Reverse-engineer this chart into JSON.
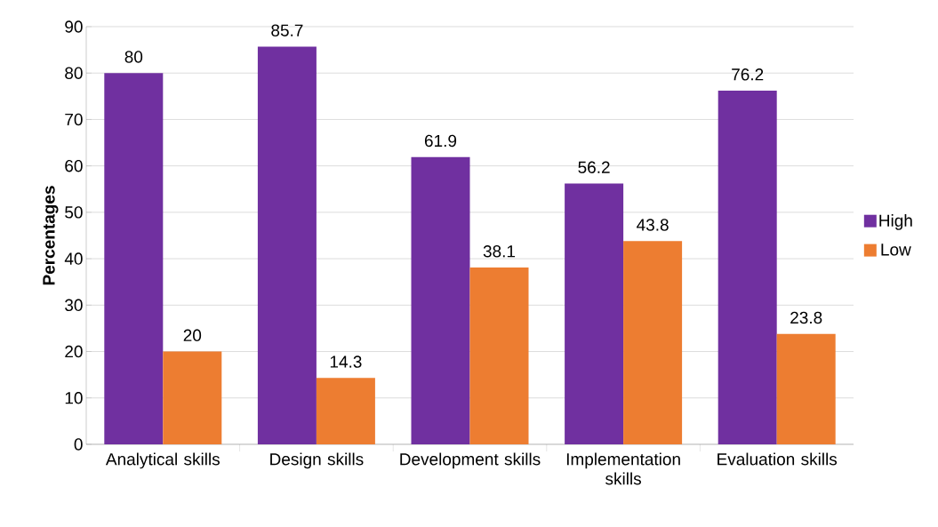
{
  "chart_data": {
    "type": "bar",
    "ylabel": "Percentages",
    "categories": [
      "Analytical skills",
      "Design skills",
      "Development skills",
      "Implementation skills",
      "Evaluation skills"
    ],
    "series": [
      {
        "name": "High",
        "color": "#7030a0",
        "values": [
          80,
          85.7,
          61.9,
          56.2,
          76.2
        ]
      },
      {
        "name": "Low",
        "color": "#ed7d31",
        "values": [
          20,
          14.3,
          38.1,
          43.8,
          23.8
        ]
      }
    ],
    "ylim": [
      0,
      90
    ],
    "yticks": [
      0,
      10,
      20,
      30,
      40,
      50,
      60,
      70,
      80,
      90
    ],
    "grid": "y",
    "legend": "right",
    "data_labels": true
  }
}
